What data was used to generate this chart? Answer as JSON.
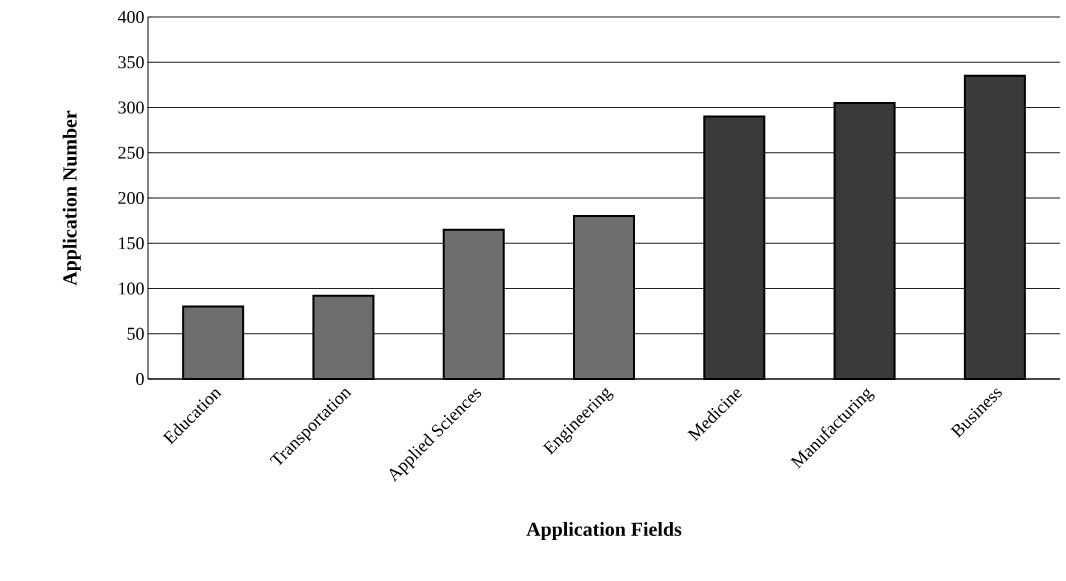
{
  "chart_data": {
    "type": "bar",
    "xlabel": "Application Fields",
    "ylabel": "Application Number",
    "categories": [
      "Education",
      "Transportation",
      "Applied Sciences",
      "Engineering",
      "Medicine",
      "Manufacturing",
      "Business"
    ],
    "values": [
      80,
      92,
      165,
      180,
      290,
      305,
      335
    ],
    "colors": [
      "#6e6e6e",
      "#6e6e6e",
      "#6e6e6e",
      "#6e6e6e",
      "#3a3a3a",
      "#3a3a3a",
      "#3a3a3a"
    ],
    "ylim": [
      0,
      400
    ],
    "yticks": [
      0,
      50,
      100,
      150,
      200,
      250,
      300,
      350,
      400
    ],
    "grid": "y"
  }
}
